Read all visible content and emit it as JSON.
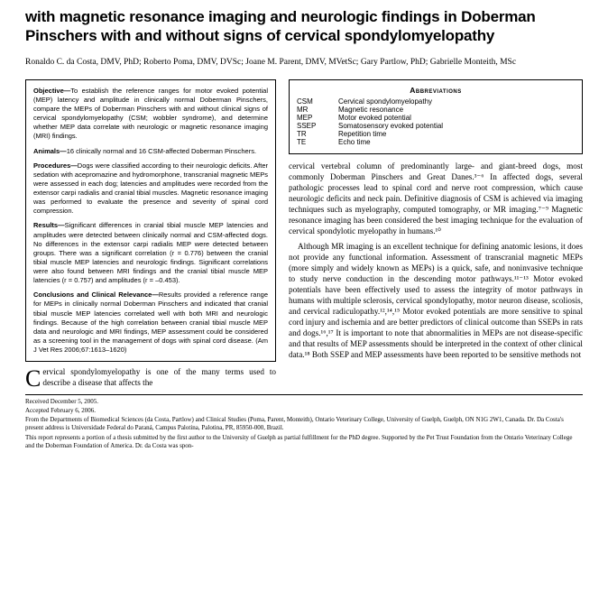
{
  "title": "with magnetic resonance imaging and neurologic findings in Doberman Pinschers with and without signs of cervical spondylomyelopathy",
  "authors": "Ronaldo C. da Costa, DMV, PhD; Roberto Poma, DMV, DVSc; Joane M. Parent, DMV, MVetSc; Gary Partlow, PhD; Gabrielle Monteith, MSc",
  "abstract": {
    "objective_head": "Objective—",
    "objective": "To establish the reference ranges for motor evoked potential (MEP) latency and amplitude in clinically normal Doberman Pinschers, compare the MEPs of Doberman Pinschers with and without clinical signs of cervical spondylomyelopathy (CSM; wobbler syndrome), and determine whether MEP data correlate with neurologic or magnetic resonance imaging (MRI) findings.",
    "animals_head": "Animals—",
    "animals": "16 clinically normal and 16 CSM-affected Doberman Pinschers.",
    "procedures_head": "Procedures—",
    "procedures": "Dogs were classified according to their neurologic deficits. After sedation with acepromazine and hydromorphone, transcranial magnetic MEPs were assessed in each dog; latencies and amplitudes were recorded from the extensor carpi radialis and cranial tibial muscles. Magnetic resonance imaging was performed to evaluate the presence and severity of spinal cord compression.",
    "results_head": "Results—",
    "results": "Significant differences in cranial tibial muscle MEP latencies and amplitudes were detected between clinically normal and CSM-affected dogs. No differences in the extensor carpi radialis MEP were detected between groups. There was a significant correlation (r = 0.776) between the cranial tibial muscle MEP latencies and neurologic findings. Significant correlations were also found between MRI findings and the cranial tibial muscle MEP latencies (r = 0.757) and amplitudes (r = –0.453).",
    "conclusions_head": "Conclusions and Clinical Relevance—",
    "conclusions": "Results provided a reference range for MEPs in clinically normal Doberman Pinschers and indicated that cranial tibial muscle MEP latencies correlated well with both MRI and neurologic findings. Because of the high correlation between cranial tibial muscle MEP data and neurologic and MRI findings, MEP assessment could be considered as a screening tool in the management of dogs with spinal cord disease. (Am J Vet Res 2006;67:1613–1620)"
  },
  "abbrev": {
    "title": "Abbreviations",
    "items": [
      {
        "k": "CSM",
        "v": "Cervical spondylomyelopathy"
      },
      {
        "k": "MR",
        "v": "Magnetic resonance"
      },
      {
        "k": "MEP",
        "v": "Motor evoked potential"
      },
      {
        "k": "SSEP",
        "v": "Somatosensory evoked potential"
      },
      {
        "k": "TR",
        "v": "Repetition time"
      },
      {
        "k": "TE",
        "v": "Echo time"
      }
    ]
  },
  "body": {
    "p1": "cervical vertebral column of predominantly large- and giant-breed dogs, most commonly Doberman Pinschers and Great Danes.³⁻⁶ In affected dogs, several pathologic processes lead to spinal cord and nerve root compression, which cause neurologic deficits and neck pain. Definitive diagnosis of CSM is achieved via imaging techniques such as myelography, computed tomography, or MR imaging.⁷⁻⁹ Magnetic resonance imaging has been considered the best imaging technique for the evaluation of cervical spondylotic myelopathy in humans.¹⁰",
    "p2": "Although MR imaging is an excellent technique for defining anatomic lesions, it does not provide any functional information. Assessment of transcranial magnetic MEPs (more simply and widely known as MEPs) is a quick, safe, and noninvasive technique to study nerve conduction in the descending motor pathways.¹¹⁻¹³ Motor evoked potentials have been effectively used to assess the integrity of motor pathways in humans with multiple sclerosis, cervical spondylopathy, motor neuron disease, scoliosis, and cervical radiculopathy.¹²,¹⁴,¹⁵ Motor evoked potentials are more sensitive to spinal cord injury and ischemia and are better predictors of clinical outcome than SSEPs in rats and dogs.¹⁶,¹⁷ It is important to note that abnormalities in MEPs are not disease-specific and that results of MEP assessments should be interpreted in the context of other clinical data.¹⁸ Both SSEP and MEP assessments have been reported to be sensitive methods not"
  },
  "lead": {
    "dropcap": "C",
    "text": "ervical spondylomyelopathy is one of the many terms used to describe a disease that affects the"
  },
  "footer": {
    "l1": "Received December 5, 2005.",
    "l2": "Accepted February 6, 2006.",
    "l3": "From the Departments of Biomedical Sciences (da Costa, Partlow) and Clinical Studies (Poma, Parent, Monteith), Ontario Veterinary College, University of Guelph, Guelph, ON N1G 2W1, Canada. Dr. Da Costa's present address is Universidade Federal do Paraná, Campus Palotina, Palotina, PR, 85950-000, Brazil.",
    "l4": "This report represents a portion of a thesis submitted by the first author to the University of Guelph as partial fulfillment for the PhD degree. Supported by the Pet Trust Foundation from the Ontario Veterinary College and the Doberman Foundation of America. Dr. da Costa was spon-"
  }
}
